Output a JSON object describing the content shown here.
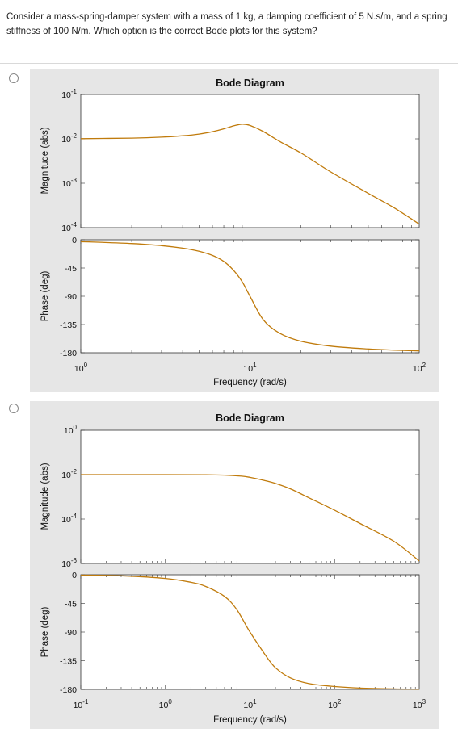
{
  "question": {
    "text": "Consider a mass-spring-damper system with a mass of 1 kg, a damping coefficient of 5 N.s/m, and a spring stiffness of 100 N/m. Which option is the correct Bode plots for this system?"
  },
  "chart_data": [
    {
      "type": "line",
      "title": "Bode Diagram",
      "xlabel": "Frequency (rad/s)",
      "x_scale": "log",
      "xlim": [
        1,
        100
      ],
      "x_ticks": [
        {
          "base": "10",
          "exp": "0",
          "value": 1
        },
        {
          "base": "10",
          "exp": "1",
          "value": 10
        },
        {
          "base": "10",
          "exp": "2",
          "value": 100
        }
      ],
      "magnitude": {
        "ylabel": "Magnitude (abs)",
        "y_scale": "log",
        "ylim": [
          0.0001,
          0.1
        ],
        "y_ticks": [
          {
            "base": "10",
            "exp": "-1",
            "value": 0.1
          },
          {
            "base": "10",
            "exp": "-2",
            "value": 0.01
          },
          {
            "base": "10",
            "exp": "-3",
            "value": 0.001
          },
          {
            "base": "10",
            "exp": "-4",
            "value": 0.0001
          }
        ],
        "x": [
          1,
          2,
          3,
          4,
          5,
          6,
          7,
          8,
          9,
          10,
          12,
          15,
          20,
          30,
          50,
          70,
          100
        ],
        "values": [
          0.0101,
          0.0104,
          0.0109,
          0.0117,
          0.0128,
          0.0145,
          0.0168,
          0.0196,
          0.0214,
          0.02,
          0.0146,
          0.0087,
          0.0048,
          0.0018,
          0.00059,
          0.00029,
          0.00012
        ]
      },
      "phase": {
        "ylabel": "Phase (deg)",
        "ylim": [
          -180,
          0
        ],
        "y_ticks": [
          "0",
          "-45",
          "-90",
          "-135",
          "-180"
        ],
        "x": [
          1,
          2,
          3,
          4,
          5,
          6,
          7,
          8,
          9,
          10,
          12,
          15,
          20,
          30,
          50,
          70,
          100
        ],
        "values": [
          -2.9,
          -6.0,
          -9.4,
          -13.4,
          -18.4,
          -25.0,
          -34.5,
          -48.7,
          -67.0,
          -90.0,
          -127.7,
          -149.0,
          -161.6,
          -169.5,
          -174.0,
          -175.7,
          -177.1
        ]
      }
    },
    {
      "type": "line",
      "title": "Bode Diagram",
      "xlabel": "Frequency (rad/s)",
      "x_scale": "log",
      "xlim": [
        0.1,
        1000
      ],
      "x_ticks": [
        {
          "base": "10",
          "exp": "-1",
          "value": 0.1
        },
        {
          "base": "10",
          "exp": "0",
          "value": 1
        },
        {
          "base": "10",
          "exp": "1",
          "value": 10
        },
        {
          "base": "10",
          "exp": "2",
          "value": 100
        },
        {
          "base": "10",
          "exp": "3",
          "value": 1000
        }
      ],
      "magnitude": {
        "ylabel": "Magnitude (abs)",
        "y_scale": "log",
        "ylim": [
          1e-06,
          1
        ],
        "y_ticks": [
          {
            "base": "10",
            "exp": "0",
            "value": 1
          },
          {
            "base": "10",
            "exp": "-2",
            "value": 0.01
          },
          {
            "base": "10",
            "exp": "-4",
            "value": 0.0001
          },
          {
            "base": "10",
            "exp": "-6",
            "value": 1e-06
          }
        ],
        "x": [
          0.1,
          1,
          3,
          5,
          8,
          10,
          15,
          20,
          30,
          50,
          100,
          200,
          500,
          1000
        ],
        "values": [
          0.01,
          0.01,
          0.0099,
          0.0095,
          0.0085,
          0.0075,
          0.0054,
          0.004,
          0.0023,
          0.0009,
          0.00025,
          6.3e-05,
          1e-05,
          1.3e-06
        ]
      },
      "phase": {
        "ylabel": "Phase (deg)",
        "ylim": [
          -180,
          0
        ],
        "y_ticks": [
          "0",
          "-45",
          "-90",
          "-135",
          "-180"
        ],
        "x": [
          0.1,
          0.3,
          1,
          2,
          3,
          5,
          7,
          10,
          15,
          20,
          30,
          50,
          100,
          200,
          500,
          1000
        ],
        "values": [
          -0.6,
          -1.7,
          -5.8,
          -11.8,
          -18.4,
          -34.0,
          -55.0,
          -90.0,
          -125.0,
          -146.0,
          -162.0,
          -171.0,
          -175.6,
          -178.0,
          -179.3,
          -179.6
        ]
      }
    }
  ]
}
